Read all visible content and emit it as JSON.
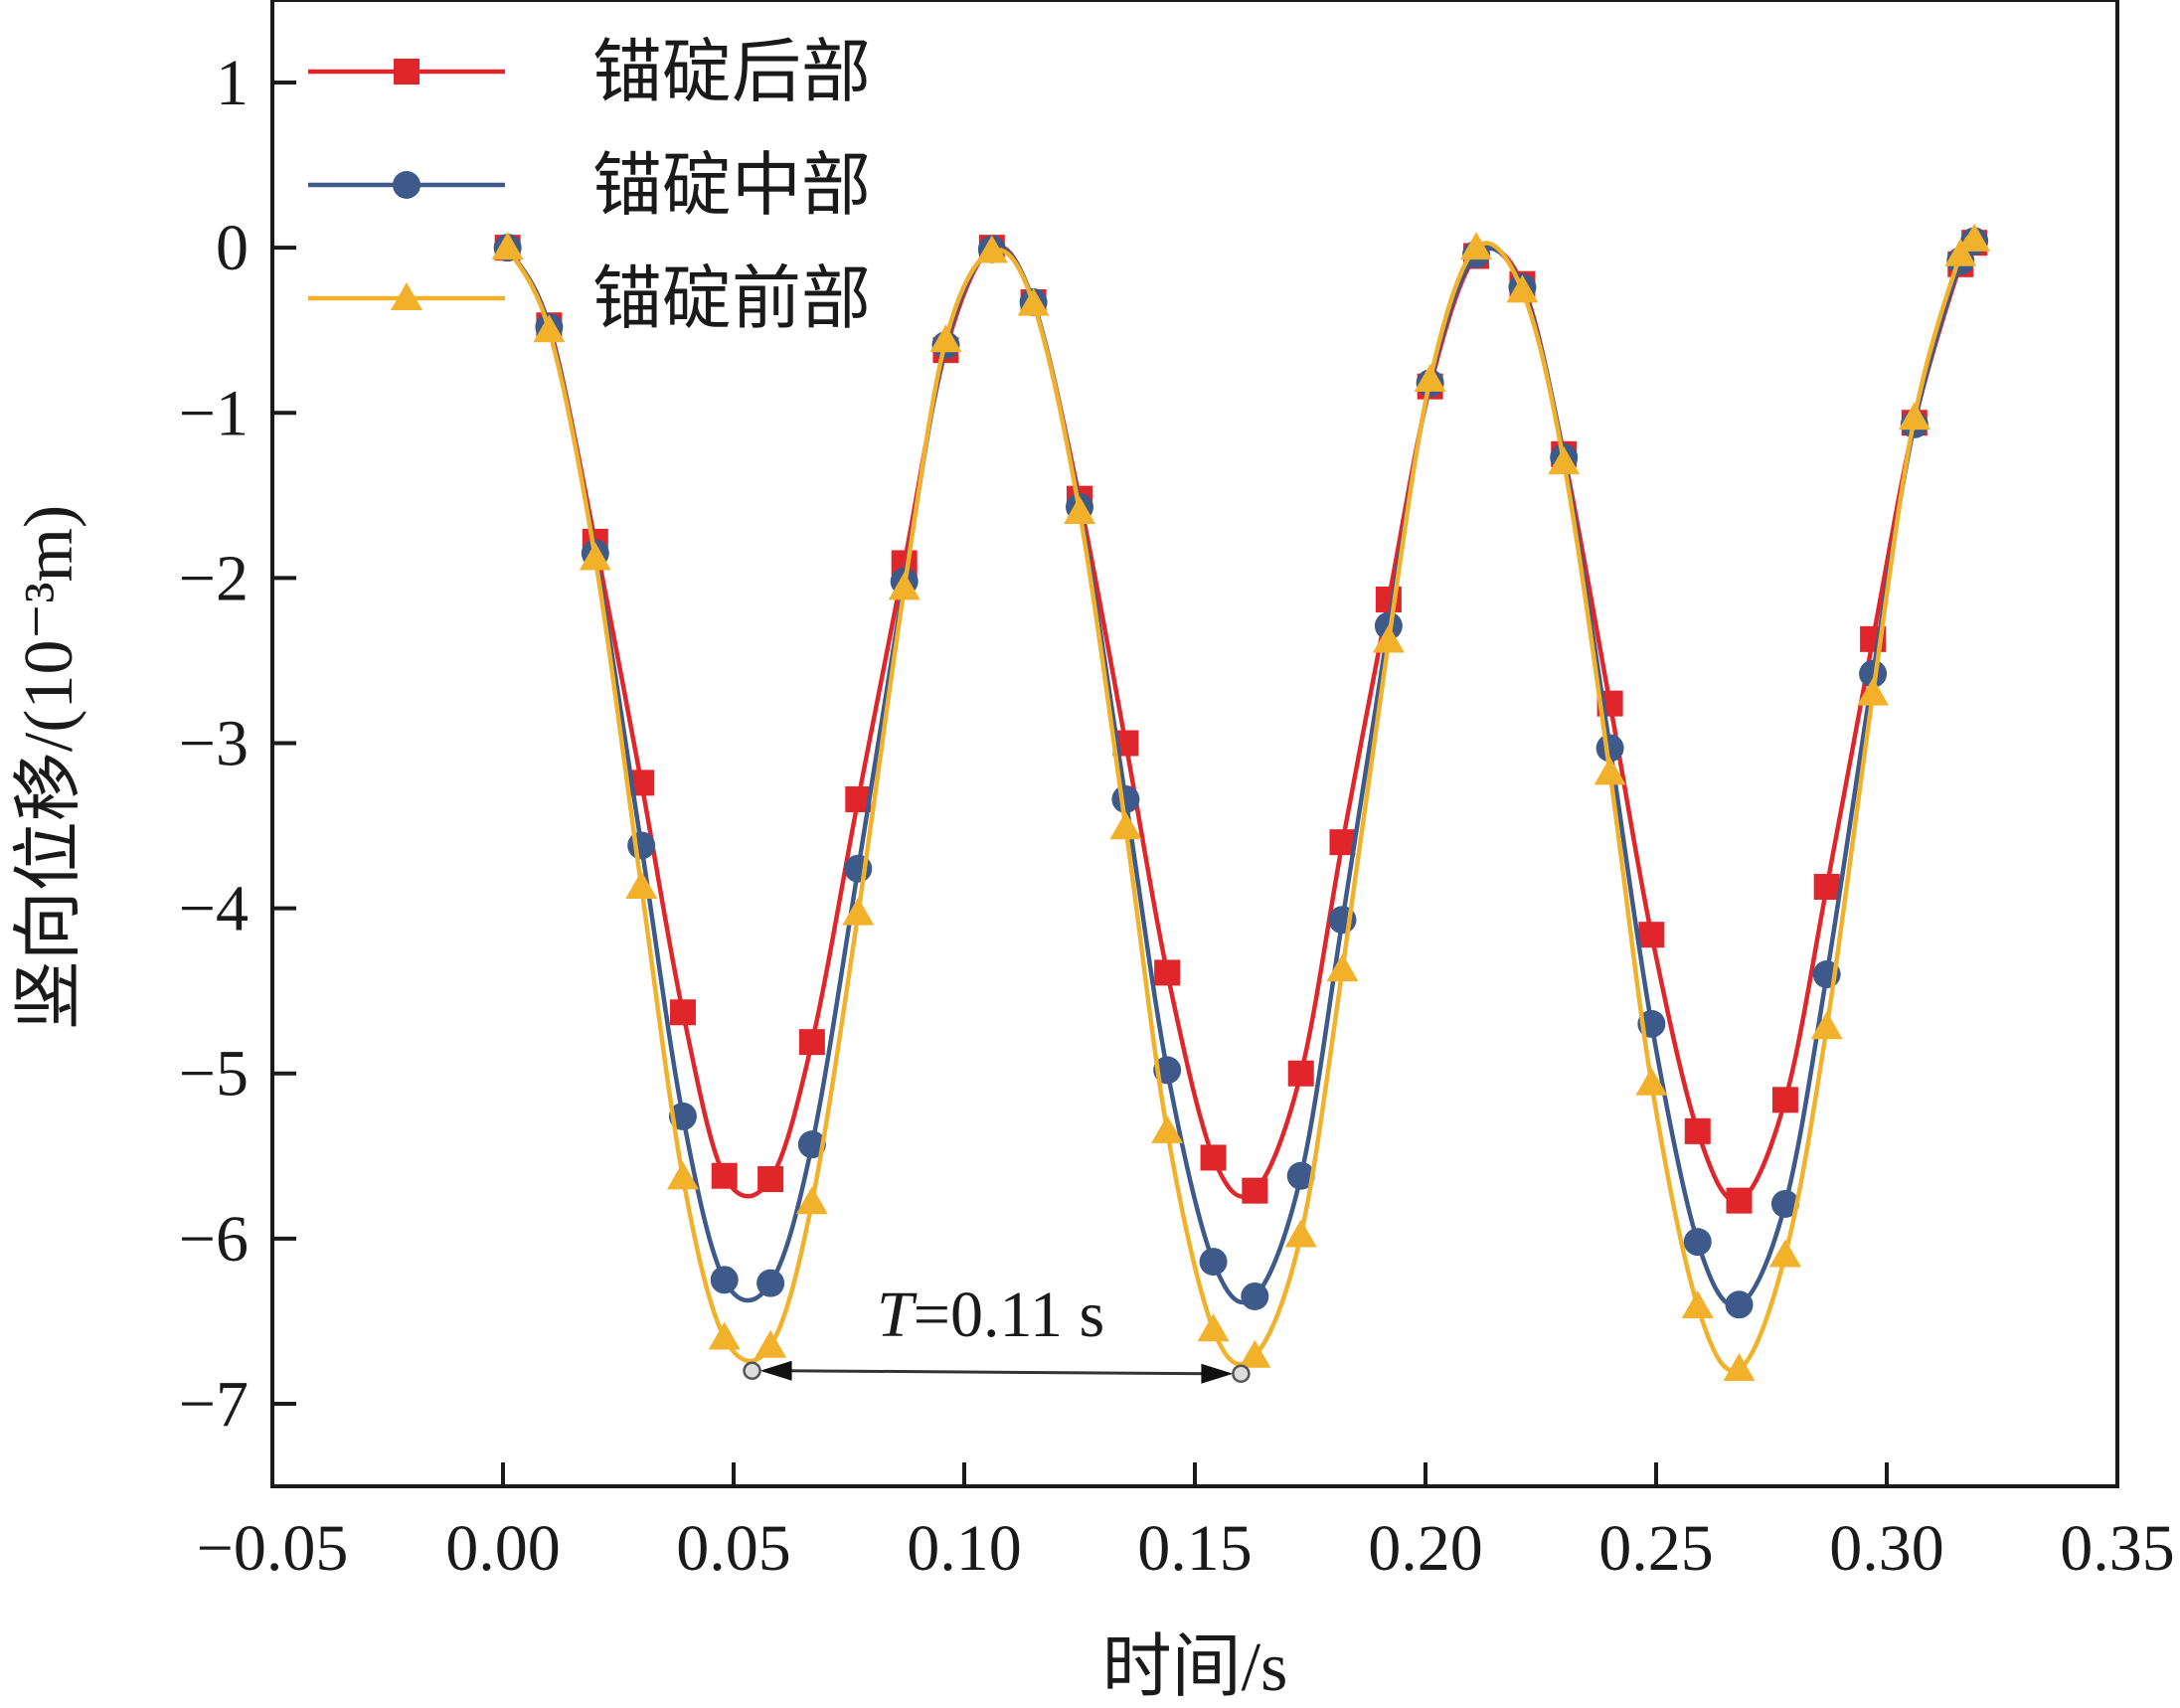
{
  "chart_data": {
    "type": "line",
    "xlabel": "时间/s",
    "ylabel": "竖向位移/(10⁻³m)",
    "xlim": [
      -0.05,
      0.35
    ],
    "ylim": [
      -7.5,
      1.5
    ],
    "xticks": [
      "−0.05",
      "0.00",
      "0.05",
      "0.10",
      "0.15",
      "0.20",
      "0.25",
      "0.30",
      "0.35"
    ],
    "yticks": [
      "1",
      "0",
      "−1",
      "−2",
      "−3",
      "−4",
      "−5",
      "−6",
      "−7"
    ],
    "grid": false,
    "legend_position": "top-left",
    "annotation": {
      "label_italic": "T",
      "label_rest": "=0.11 s",
      "x_start": 0.054,
      "x_end": 0.16,
      "y": -6.8
    },
    "series": [
      {
        "name": "锚碇后部",
        "color": "#e0262b",
        "marker": "square",
        "x": [
          0.001,
          0.01,
          0.02,
          0.03,
          0.039,
          0.048,
          0.058,
          0.067,
          0.077,
          0.087,
          0.096,
          0.106,
          0.115,
          0.125,
          0.135,
          0.144,
          0.154,
          0.163,
          0.173,
          0.182,
          0.192,
          0.201,
          0.211,
          0.221,
          0.23,
          0.24,
          0.249,
          0.259,
          0.268,
          0.278,
          0.287,
          0.297,
          0.306,
          0.316,
          0.319
        ],
        "y": [
          0.0,
          -0.47,
          -1.78,
          -3.24,
          -4.63,
          -5.62,
          -5.64,
          -4.81,
          -3.34,
          -1.91,
          -0.62,
          0.0,
          -0.33,
          -1.52,
          -3.0,
          -4.39,
          -5.51,
          -5.71,
          -5.0,
          -3.6,
          -2.13,
          -0.84,
          -0.05,
          -0.22,
          -1.25,
          -2.76,
          -4.16,
          -5.35,
          -5.77,
          -5.16,
          -3.87,
          -2.37,
          -1.06,
          -0.1,
          0.03
        ]
      },
      {
        "name": "锚碇中部",
        "color": "#3d5a8a",
        "marker": "circle",
        "x": [
          0.001,
          0.01,
          0.02,
          0.03,
          0.039,
          0.048,
          0.058,
          0.067,
          0.077,
          0.087,
          0.096,
          0.106,
          0.115,
          0.125,
          0.135,
          0.144,
          0.154,
          0.163,
          0.173,
          0.182,
          0.192,
          0.201,
          0.211,
          0.221,
          0.23,
          0.24,
          0.249,
          0.259,
          0.268,
          0.278,
          0.287,
          0.297,
          0.306,
          0.316,
          0.319
        ],
        "y": [
          0.0,
          -0.48,
          -1.85,
          -3.62,
          -5.26,
          -6.25,
          -6.27,
          -5.43,
          -3.76,
          -2.02,
          -0.59,
          -0.01,
          -0.33,
          -1.57,
          -3.34,
          -4.98,
          -6.14,
          -6.35,
          -5.62,
          -4.07,
          -2.29,
          -0.82,
          -0.04,
          -0.24,
          -1.27,
          -3.03,
          -4.7,
          -6.02,
          -6.4,
          -5.79,
          -4.4,
          -2.58,
          -1.07,
          -0.08,
          0.04
        ]
      },
      {
        "name": "锚碇前部",
        "color": "#f2b12b",
        "marker": "triangle",
        "x": [
          0.001,
          0.01,
          0.02,
          0.03,
          0.039,
          0.048,
          0.058,
          0.067,
          0.077,
          0.087,
          0.096,
          0.106,
          0.115,
          0.125,
          0.135,
          0.144,
          0.154,
          0.163,
          0.173,
          0.182,
          0.192,
          0.201,
          0.211,
          0.221,
          0.23,
          0.24,
          0.249,
          0.259,
          0.268,
          0.278,
          0.287,
          0.297,
          0.306,
          0.316,
          0.319
        ],
        "y": [
          0.0,
          -0.5,
          -1.88,
          -3.87,
          -5.63,
          -6.6,
          -6.65,
          -5.78,
          -4.03,
          -2.06,
          -0.56,
          -0.02,
          -0.34,
          -1.6,
          -3.51,
          -5.35,
          -6.55,
          -6.71,
          -5.98,
          -4.37,
          -2.38,
          -0.8,
          0.0,
          -0.26,
          -1.3,
          -3.18,
          -5.06,
          -6.41,
          -6.79,
          -6.1,
          -4.72,
          -2.7,
          -1.03,
          -0.04,
          0.05
        ]
      }
    ]
  }
}
